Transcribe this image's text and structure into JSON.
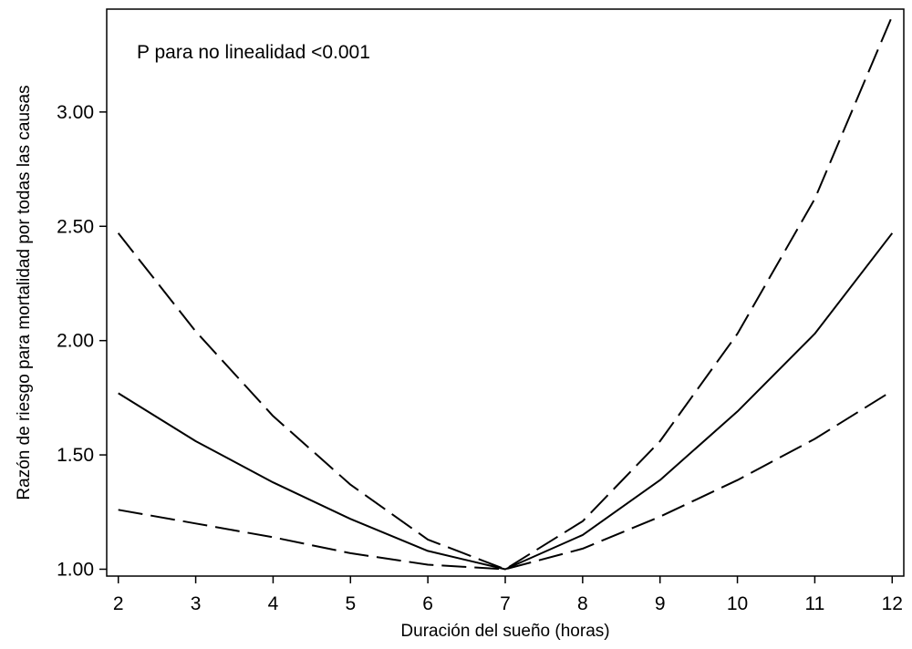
{
  "chart_data": {
    "type": "line",
    "xlabel": "Duración del sueño (horas)",
    "ylabel": "Razón de riesgo para mortalidad por todas las causas",
    "annotation": "P para no linealidad <0.001",
    "xlim": [
      1.85,
      12.15
    ],
    "ylim": [
      0.97,
      3.45
    ],
    "xticks": [
      "2",
      "3",
      "4",
      "5",
      "6",
      "7",
      "8",
      "9",
      "10",
      "11",
      "12"
    ],
    "yticks": [
      "1.00",
      "1.50",
      "2.00",
      "2.50",
      "3.00"
    ],
    "grid": false,
    "series": [
      {
        "role": "estimate",
        "style": "solid",
        "x": [
          2,
          3,
          4,
          5,
          6,
          7,
          8,
          9,
          10,
          11,
          12
        ],
        "y": [
          1.77,
          1.56,
          1.38,
          1.22,
          1.08,
          1.0,
          1.15,
          1.39,
          1.69,
          2.03,
          2.47
        ]
      },
      {
        "role": "upper-ci",
        "style": "dashed",
        "x": [
          2,
          3,
          4,
          5,
          6,
          7,
          8,
          9,
          10,
          11,
          12
        ],
        "y": [
          2.47,
          2.04,
          1.67,
          1.37,
          1.13,
          1.0,
          1.21,
          1.56,
          2.03,
          2.62,
          3.42
        ]
      },
      {
        "role": "lower-ci",
        "style": "dashed",
        "x": [
          2,
          3,
          4,
          5,
          6,
          7,
          8,
          9,
          10,
          11,
          12
        ],
        "y": [
          1.26,
          1.2,
          1.14,
          1.07,
          1.02,
          1.0,
          1.09,
          1.23,
          1.39,
          1.57,
          1.78
        ]
      }
    ]
  }
}
